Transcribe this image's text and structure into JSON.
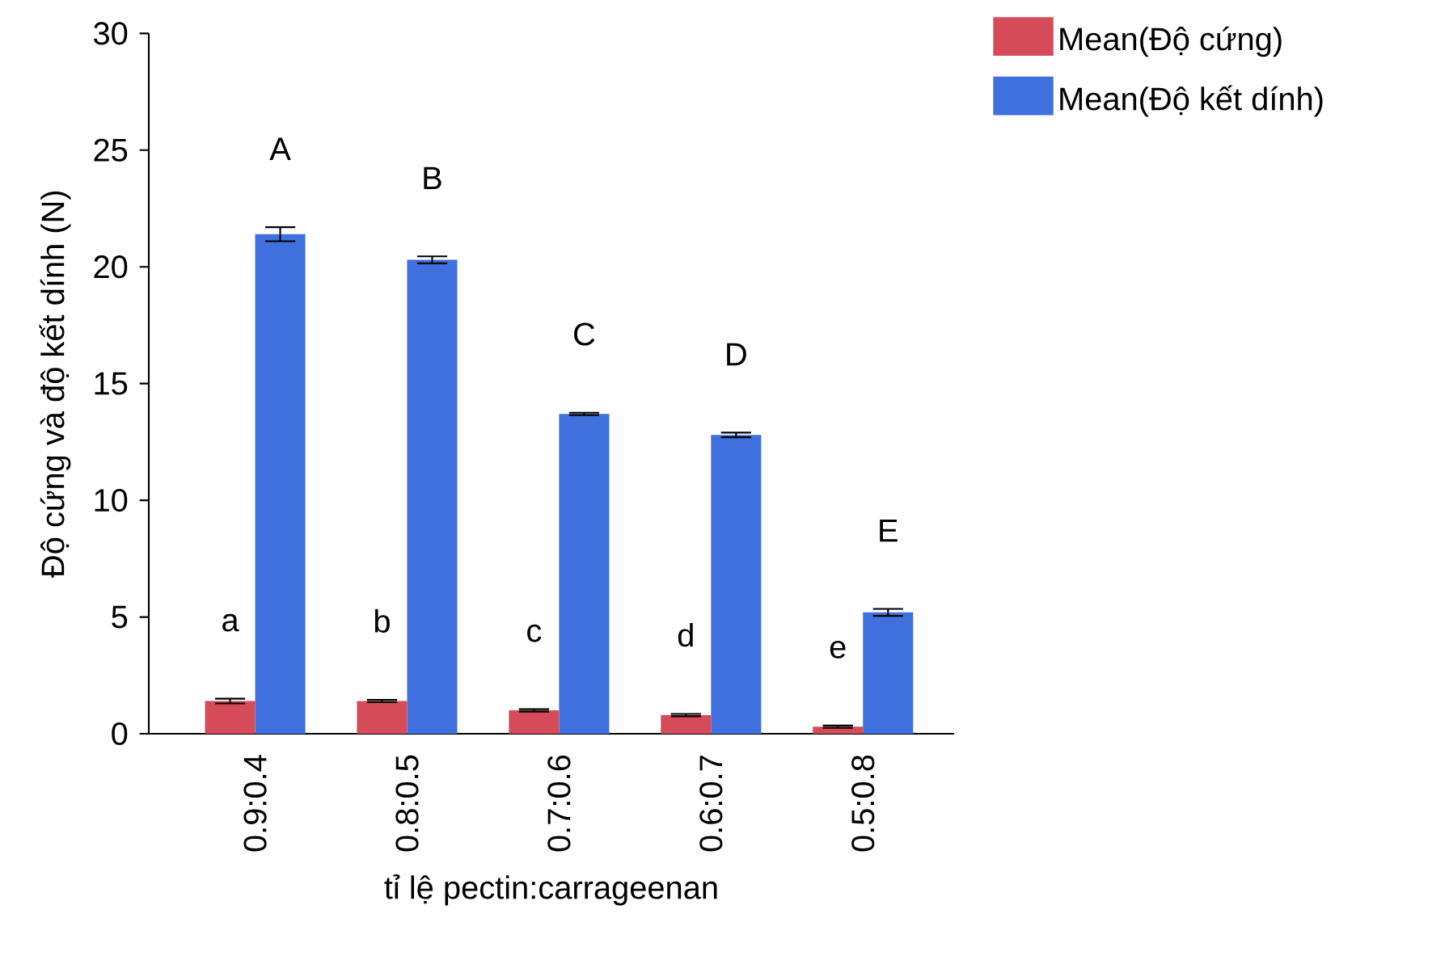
{
  "chart_data": {
    "type": "bar",
    "xlabel": "tỉ lệ pectin:carrageenan",
    "ylabel": "Độ cứng và độ kết dính (N)",
    "categories": [
      "0.9:0.4",
      "0.8:0.5",
      "0.7:0.6",
      "0.6:0.7",
      "0.5:0.8"
    ],
    "series": [
      {
        "name": "Mean(Độ cứng)",
        "color": "#d54b5a",
        "values": [
          1.4,
          1.4,
          1.0,
          0.8,
          0.3
        ],
        "errors": [
          0.1,
          0.05,
          0.05,
          0.05,
          0.05
        ]
      },
      {
        "name": "Mean(Độ kết dính)",
        "color": "#4070dd",
        "values": [
          21.4,
          20.3,
          13.7,
          12.8,
          5.2
        ],
        "errors": [
          0.3,
          0.15,
          0.05,
          0.1,
          0.15
        ]
      }
    ],
    "ylim": [
      0,
      30
    ],
    "yticks": [
      0,
      5,
      10,
      15,
      20,
      25,
      30
    ],
    "legend": "top right",
    "grid": false,
    "annotations": [
      "a",
      "A",
      "b",
      "B",
      "c",
      "C",
      "d",
      "D",
      "e",
      "E"
    ]
  }
}
